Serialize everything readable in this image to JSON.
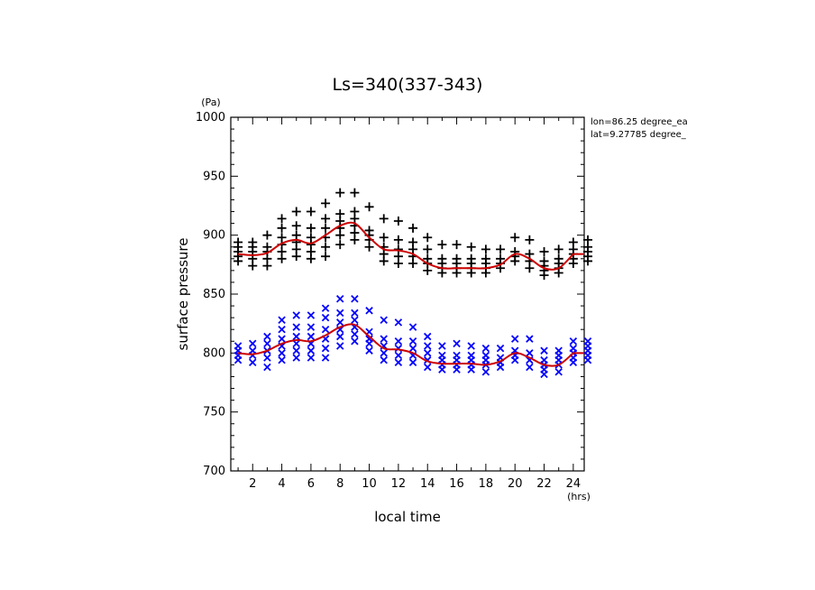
{
  "chart_data": {
    "type": "scatter",
    "title": "Ls=340(337-343)",
    "xlabel": "local time",
    "ylabel": "surface pressure",
    "xunit": "(hrs)",
    "yunit": "(Pa)",
    "annotations": [
      "lon=86.25 degree_ea",
      "lat=9.27785 degree_"
    ],
    "xlim": [
      0.5,
      24.75
    ],
    "ylim": [
      700,
      1000
    ],
    "xticks": [
      2,
      4,
      6,
      8,
      10,
      12,
      14,
      16,
      18,
      20,
      22,
      24
    ],
    "yticks": [
      700,
      750,
      800,
      850,
      900,
      950,
      1000
    ],
    "hours": [
      1,
      2,
      3,
      4,
      5,
      6,
      7,
      8,
      9,
      10,
      11,
      12,
      13,
      14,
      15,
      16,
      17,
      18,
      19,
      20,
      21,
      22,
      23,
      24,
      25
    ],
    "series": [
      {
        "marker": "plus",
        "color": "#000000",
        "points_by_hour": [
          [
            878,
            882,
            886,
            890,
            894
          ],
          [
            874,
            880,
            886,
            890,
            894
          ],
          [
            874,
            880,
            886,
            890,
            900
          ],
          [
            880,
            886,
            892,
            898,
            906,
            914
          ],
          [
            882,
            888,
            894,
            900,
            908,
            920
          ],
          [
            880,
            886,
            892,
            898,
            906,
            920
          ],
          [
            882,
            890,
            898,
            906,
            914,
            927
          ],
          [
            892,
            900,
            906,
            912,
            918,
            936
          ],
          [
            896,
            902,
            908,
            914,
            920,
            936
          ],
          [
            890,
            896,
            900,
            904,
            924
          ],
          [
            878,
            884,
            890,
            898,
            914
          ],
          [
            876,
            882,
            888,
            896,
            912
          ],
          [
            876,
            882,
            888,
            894,
            906
          ],
          [
            870,
            876,
            880,
            888,
            898
          ],
          [
            868,
            872,
            876,
            880,
            892
          ],
          [
            868,
            872,
            876,
            880,
            892
          ],
          [
            868,
            872,
            876,
            880,
            890
          ],
          [
            868,
            872,
            876,
            880,
            888
          ],
          [
            872,
            876,
            880,
            888
          ],
          [
            878,
            882,
            886,
            898
          ],
          [
            872,
            878,
            884,
            896
          ],
          [
            866,
            870,
            874,
            878,
            886
          ],
          [
            868,
            872,
            876,
            880,
            888
          ],
          [
            876,
            880,
            884,
            888,
            894
          ],
          [
            878,
            882,
            886,
            890,
            896
          ]
        ],
        "mean": [
          884,
          883,
          885,
          893,
          896,
          893,
          900,
          908,
          910,
          898,
          888,
          887,
          884,
          876,
          872,
          872,
          872,
          872,
          875,
          884,
          880,
          872,
          872,
          884,
          884
        ]
      },
      {
        "marker": "cross",
        "color": "#0000ff",
        "points_by_hour": [
          [
            794,
            798,
            802,
            806
          ],
          [
            792,
            798,
            802,
            808
          ],
          [
            788,
            796,
            802,
            808,
            814
          ],
          [
            794,
            800,
            806,
            812,
            820,
            828
          ],
          [
            796,
            802,
            808,
            814,
            822,
            832
          ],
          [
            796,
            802,
            808,
            814,
            822,
            832
          ],
          [
            796,
            804,
            812,
            820,
            830,
            838
          ],
          [
            806,
            814,
            820,
            826,
            834,
            846
          ],
          [
            810,
            816,
            822,
            828,
            834,
            846
          ],
          [
            802,
            808,
            812,
            818,
            836
          ],
          [
            794,
            800,
            806,
            812,
            828
          ],
          [
            792,
            798,
            804,
            810,
            826
          ],
          [
            792,
            798,
            804,
            810,
            822
          ],
          [
            788,
            794,
            800,
            806,
            814
          ],
          [
            786,
            790,
            794,
            798,
            806
          ],
          [
            786,
            790,
            794,
            798,
            808
          ],
          [
            786,
            790,
            794,
            798,
            806
          ],
          [
            784,
            790,
            794,
            798,
            804
          ],
          [
            788,
            792,
            796,
            804
          ],
          [
            794,
            798,
            802,
            812
          ],
          [
            788,
            794,
            800,
            812
          ],
          [
            782,
            786,
            790,
            794,
            802
          ],
          [
            784,
            790,
            794,
            798,
            802
          ],
          [
            792,
            796,
            800,
            804,
            810
          ],
          [
            794,
            798,
            802,
            806,
            810
          ]
        ],
        "mean": [
          800,
          799,
          802,
          808,
          811,
          810,
          815,
          822,
          824,
          814,
          804,
          803,
          800,
          793,
          791,
          791,
          791,
          790,
          793,
          800,
          796,
          790,
          790,
          800,
          800
        ]
      }
    ],
    "mean_color": "#cc0000"
  }
}
